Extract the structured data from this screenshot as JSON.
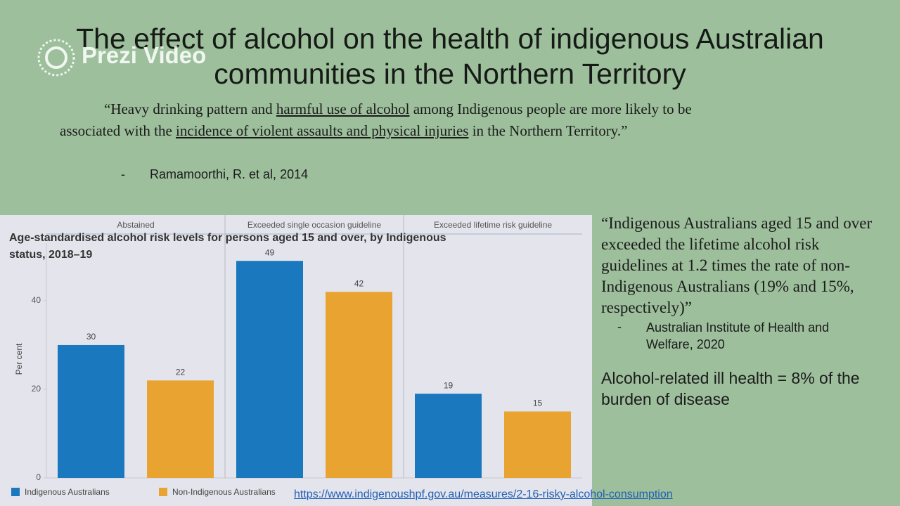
{
  "watermark": "Prezi Video",
  "title": "The effect of alcohol on the health of indigenous Australian communities in the Northern Territory",
  "quote1": [
    "“Heavy drinking pattern and ",
    "harmful use of alcohol",
    " among Indigenous people are more likely to be associated with the ",
    "incidence of violent assaults and physical injuries",
    " in the Northern Territory.”"
  ],
  "citation1": {
    "dash": "-",
    "text": "Ramamoorthi, R. et al, 2014"
  },
  "quote2": "“Indigenous Australians aged 15 and over exceeded the lifetime alcohol risk guidelines at 1.2 times the rate of non-Indigenous Australians (19% and 15%, respectively)”",
  "citation2": {
    "dash": "-",
    "text": "Australian Institute of Health and Welfare, 2020"
  },
  "stat": "Alcohol-related ill health = 8% of the burden of disease",
  "link": "https://www.indigenoushpf.gov.au/measures/2-16-risky-alcohol-consumption",
  "chart_data": {
    "type": "bar",
    "title": "Age-standardised alcohol risk levels for persons aged 15 and over, by Indigenous status, 2018–19",
    "y_label": "Per cent",
    "categories": [
      "Abstained",
      "Exceeded single occasion guideline",
      "Exceeded lifetime risk guideline"
    ],
    "series": [
      {
        "name": "Indigenous Australians",
        "color": "#1a78be",
        "values": [
          30,
          49,
          19
        ]
      },
      {
        "name": "Non-Indigenous Australians",
        "color": "#e8a330",
        "values": [
          22,
          42,
          15
        ]
      }
    ],
    "ylim": [
      0,
      53
    ],
    "yticks": [
      0,
      20,
      40
    ]
  }
}
